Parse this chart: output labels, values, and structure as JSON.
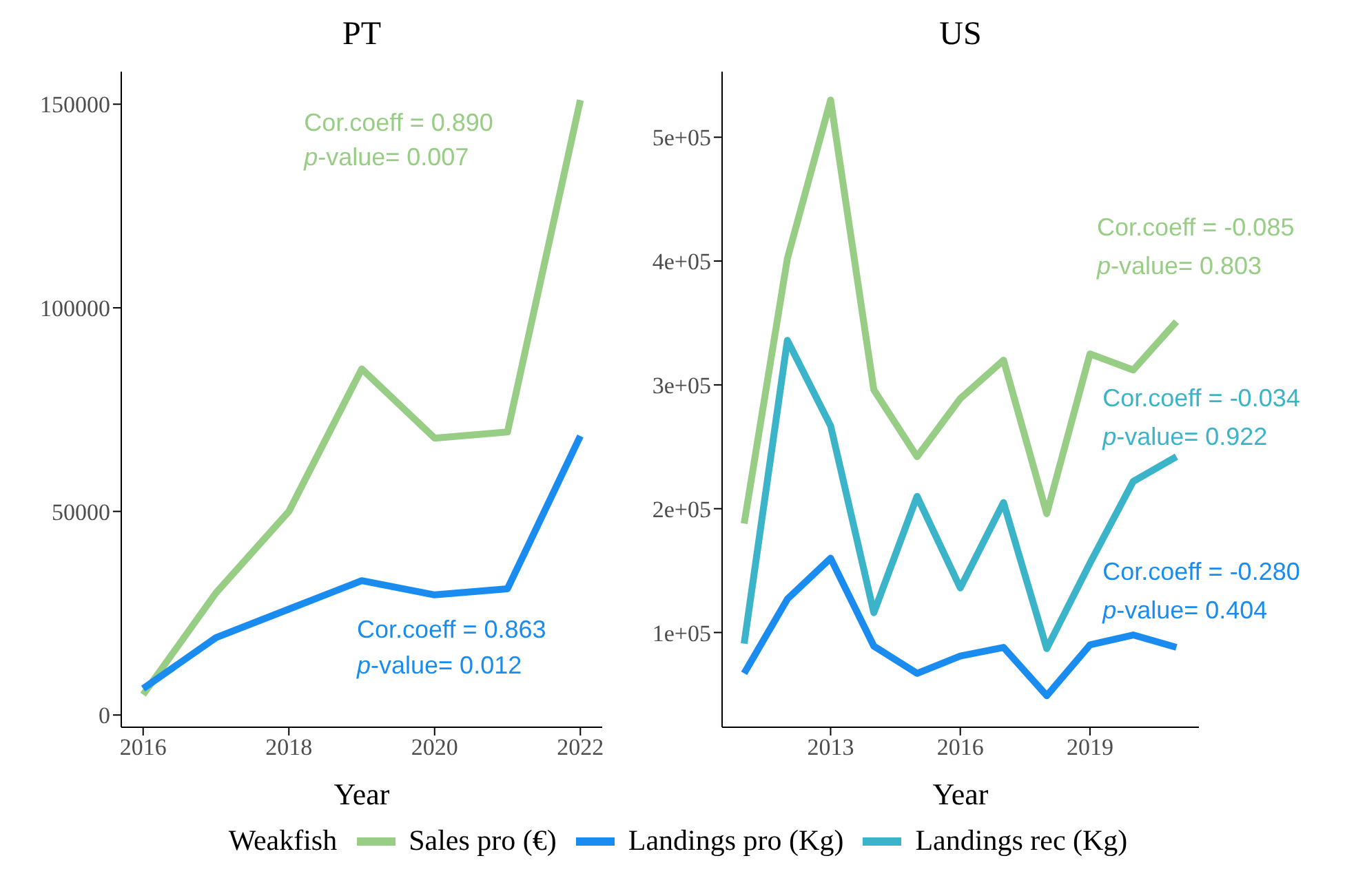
{
  "chart_data": [
    {
      "type": "line",
      "title": "PT",
      "xlabel": "Year",
      "x": [
        2016,
        2017,
        2018,
        2019,
        2020,
        2021,
        2022
      ],
      "xlim": [
        2015.7,
        2022.3
      ],
      "xticks": [
        2016,
        2018,
        2020,
        2022
      ],
      "ylim": [
        -3000,
        158000
      ],
      "yticks": [
        0,
        50000,
        100000,
        150000
      ],
      "grid": false,
      "series": [
        {
          "color": "#97cd84",
          "values": [
            5000,
            30000,
            50000,
            85000,
            68000,
            69500,
            151000
          ]
        },
        {
          "color": "#1a8cf0",
          "values": [
            6500,
            19000,
            26000,
            33000,
            29500,
            31000,
            68500
          ]
        }
      ],
      "annotations": [
        "Cor.coeff = 0.890",
        "p-value= 0.007",
        "Cor.coeff = 0.863",
        "p-value= 0.012"
      ]
    },
    {
      "type": "line",
      "title": "US",
      "xlabel": "Year",
      "x": [
        2011,
        2012,
        2013,
        2014,
        2015,
        2016,
        2017,
        2018,
        2019,
        2020,
        2021
      ],
      "xlim": [
        2010.49,
        2021.52
      ],
      "xticks": [
        2013,
        2016,
        2019
      ],
      "ylim": [
        23500,
        553000
      ],
      "yticks": [
        {
          "value": 100000,
          "label": "1e+05"
        },
        {
          "value": 200000,
          "label": "2e+05"
        },
        {
          "value": 300000,
          "label": "3e+05"
        },
        {
          "value": 400000,
          "label": "4e+05"
        },
        {
          "value": 500000,
          "label": "5e+05"
        }
      ],
      "grid": false,
      "legend": "bottom",
      "legend_title": "Weakfish",
      "series": [
        {
          "name": "Sales pro (€)",
          "color": "#97cd84",
          "values": [
            188000,
            402000,
            530000,
            296000,
            242000,
            289000,
            320000,
            196000,
            325000,
            312000,
            351000
          ]
        },
        {
          "name": "Landings pro (Kg)",
          "color": "#1a8cf0",
          "values": [
            67000,
            127000,
            160000,
            89000,
            67000,
            81000,
            88000,
            49000,
            90000,
            98000,
            88000
          ]
        },
        {
          "name": "Landings rec (Kg)",
          "color": "#3bb3c8",
          "values": [
            91000,
            336000,
            267000,
            116000,
            210000,
            136000,
            205000,
            87000,
            156000,
            222000,
            242000
          ]
        }
      ],
      "annotations": [
        "Cor.coeff = -0.085",
        "p-value= 0.803",
        "Cor.coeff = -0.280",
        "p-value= 0.404",
        "Cor.coeff = -0.034",
        "p-value= 0.922"
      ]
    }
  ]
}
